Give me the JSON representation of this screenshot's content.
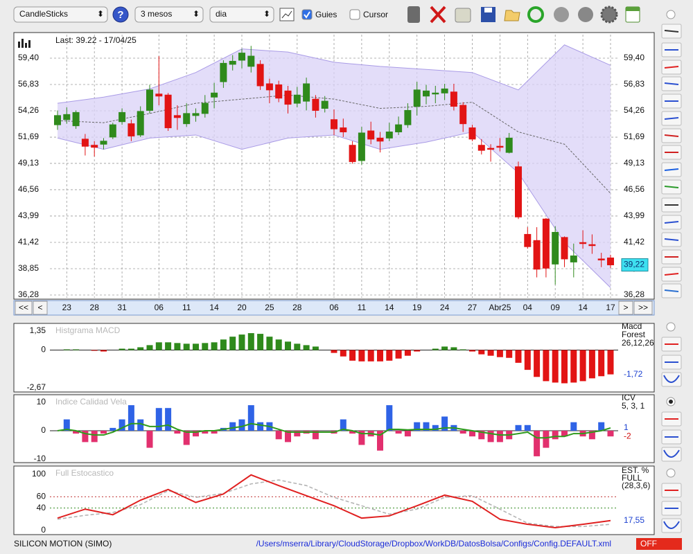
{
  "toolbar": {
    "chart_type": "CandleSticks",
    "period": "3 mesos",
    "interval": "dia",
    "options": [
      {
        "label": "Guies",
        "checked": true
      },
      {
        "label": "Cursor",
        "checked": false
      }
    ]
  },
  "main_chart": {
    "type": "candlestick",
    "last_label": "Last: 39.22 - 17/04/25",
    "categories": [
      null,
      "23",
      null,
      null,
      "28",
      null,
      null,
      "31",
      null,
      null,
      null,
      "06",
      null,
      null,
      "11",
      null,
      null,
      "14",
      null,
      null,
      "20",
      null,
      null,
      "25",
      null,
      null,
      "28",
      null,
      null,
      null,
      "06",
      null,
      null,
      "11",
      null,
      null,
      "14",
      null,
      null,
      "19",
      null,
      null,
      "24",
      null,
      null,
      "27",
      null,
      null,
      "Abr25",
      null,
      null,
      "04",
      null,
      null,
      "09",
      null,
      null,
      "14",
      null,
      null,
      "17"
    ],
    "open": [
      52.9,
      53.4,
      52.8,
      51.5,
      50.9,
      51.0,
      51.7,
      53.2,
      53.0,
      51.9,
      54.3,
      55.9,
      55.8,
      53.8,
      53.0,
      53.8,
      54.0,
      55.6,
      57.1,
      58.8,
      59.2,
      58.6,
      58.8,
      56.9,
      56.8,
      56.2,
      55.0,
      55.2,
      55.4,
      54.5,
      53.4,
      52.6,
      50.9,
      49.4,
      52.3,
      51.6,
      51.6,
      52.2,
      52.9,
      54.7,
      55.7,
      55.9,
      56.0,
      56.1,
      54.8,
      52.6,
      50.9,
      50.6,
      50.8,
      50.2,
      48.8,
      42.2,
      41.6,
      43.7,
      39.3,
      41.9,
      39.5,
      41.4,
      41.2,
      39.8,
      39.9
    ],
    "high": [
      54.3,
      54.6,
      54.3,
      52.0,
      51.3,
      51.6,
      53.1,
      54.5,
      53.4,
      54.7,
      56.8,
      59.6,
      56.0,
      54.8,
      55.0,
      54.5,
      55.8,
      57.0,
      59.2,
      59.7,
      60.3,
      60.6,
      59.2,
      57.4,
      57.2,
      56.7,
      56.6,
      57.5,
      55.8,
      55.7,
      54.4,
      53.5,
      51.3,
      52.7,
      53.2,
      52.2,
      53.1,
      53.7,
      55.0,
      57.1,
      56.8,
      56.7,
      56.9,
      56.9,
      55.1,
      52.9,
      51.5,
      51.0,
      51.6,
      52.1,
      49.3,
      42.9,
      42.9,
      43.8,
      43.0,
      42.0,
      41.3,
      42.6,
      42.2,
      40.4,
      40.2
    ],
    "low": [
      52.4,
      53.0,
      52.5,
      49.9,
      49.8,
      50.5,
      51.5,
      52.9,
      51.3,
      51.7,
      54.0,
      54.8,
      52.3,
      52.4,
      52.7,
      53.2,
      53.6,
      54.5,
      56.5,
      58.2,
      58.4,
      58.0,
      56.3,
      55.0,
      55.1,
      54.0,
      54.6,
      54.3,
      53.6,
      54.1,
      51.9,
      51.7,
      49.1,
      49.0,
      51.0,
      50.2,
      51.3,
      51.9,
      52.6,
      53.8,
      54.9,
      55.0,
      55.3,
      54.3,
      52.2,
      51.3,
      50.0,
      49.3,
      50.3,
      50.1,
      43.7,
      40.8,
      38.0,
      38.0,
      37.3,
      39.0,
      38.0,
      40.8,
      40.3,
      39.0,
      38.9
    ],
    "close": [
      53.8,
      53.9,
      54.1,
      50.8,
      50.7,
      51.3,
      52.9,
      54.1,
      51.8,
      54.2,
      56.3,
      55.7,
      52.6,
      53.6,
      54.0,
      54.0,
      55.0,
      56.0,
      58.9,
      59.1,
      59.9,
      59.6,
      56.7,
      56.3,
      55.5,
      54.9,
      55.8,
      56.9,
      54.3,
      55.2,
      52.5,
      52.2,
      49.3,
      52.1,
      51.5,
      51.3,
      52.2,
      52.9,
      54.3,
      56.3,
      56.2,
      56.0,
      56.4,
      54.7,
      53.0,
      51.5,
      50.4,
      50.5,
      50.7,
      51.6,
      43.9,
      41.0,
      38.8,
      38.9,
      42.4,
      39.8,
      40.1,
      41.3,
      41.1,
      39.7,
      39.22
    ],
    "up_color": "#2f8a1c",
    "down_color": "#e21414",
    "ylim": [
      36.28,
      59.4
    ],
    "yticks": [
      {
        "value": 59.4,
        "label": "59,40"
      },
      {
        "value": 56.83,
        "label": "56,83"
      },
      {
        "value": 54.26,
        "label": "54,26"
      },
      {
        "value": 51.69,
        "label": "51,69"
      },
      {
        "value": 49.13,
        "label": "49,13"
      },
      {
        "value": 46.56,
        "label": "46,56"
      },
      {
        "value": 43.99,
        "label": "43,99"
      },
      {
        "value": 41.42,
        "label": "41,42"
      },
      {
        "value": 38.85,
        "label": "38,85"
      },
      {
        "value": 36.28,
        "label": "36,28"
      }
    ],
    "grid": true,
    "bands": {
      "index": [
        0,
        5,
        10,
        15,
        20,
        25,
        30,
        35,
        40,
        45,
        50,
        55,
        60
      ],
      "upper": [
        55.0,
        55.6,
        56.4,
        58.0,
        60.3,
        60.0,
        59.0,
        58.6,
        58.3,
        58.0,
        56.3,
        60.7,
        58.7
      ],
      "middle": [
        53.3,
        53.1,
        54.0,
        55.0,
        55.4,
        55.8,
        55.4,
        54.5,
        54.7,
        55.1,
        52.2,
        51.0,
        46.2
      ],
      "lower": [
        51.6,
        50.5,
        51.6,
        51.9,
        50.5,
        51.6,
        51.9,
        50.5,
        51.2,
        52.2,
        48.2,
        41.4,
        37.0
      ],
      "fill_color": "#d9d2f7",
      "line_color": "#a99be6"
    },
    "price_tag": {
      "value": 39.22,
      "label": "39,22"
    }
  },
  "nav": {
    "back_far": "<<",
    "back": "<",
    "forward": ">",
    "forward_far": ">>"
  },
  "macd": {
    "type": "bar",
    "title": "Histgrama MACD",
    "values": [
      0,
      0.05,
      0.05,
      0,
      -0.05,
      -0.1,
      0,
      0.1,
      0.1,
      0.2,
      0.35,
      0.55,
      0.55,
      0.5,
      0.45,
      0.45,
      0.5,
      0.55,
      0.75,
      0.95,
      1.1,
      1.2,
      1.15,
      0.95,
      0.75,
      0.6,
      0.45,
      0.35,
      0.25,
      0,
      -0.2,
      -0.45,
      -0.75,
      -0.8,
      -0.8,
      -0.8,
      -0.75,
      -0.6,
      -0.4,
      -0.1,
      0,
      0.1,
      0.25,
      0.2,
      0.05,
      -0.1,
      -0.3,
      -0.4,
      -0.5,
      -0.55,
      -0.9,
      -1.4,
      -1.9,
      -2.2,
      -2.3,
      -2.35,
      -2.3,
      -2.2,
      -2.0,
      -1.85,
      -1.72
    ],
    "pos_color": "#2f8a1c",
    "neg_color": "#e21414",
    "ylim": [
      -2.67,
      1.35
    ],
    "yticks": [
      {
        "value": 1.35,
        "label": "1,35"
      },
      0,
      {
        "value": -2.67,
        "label": "-2,67"
      }
    ],
    "legend": [
      "Macd",
      "Forest",
      "26,12,26"
    ],
    "readout": {
      "value": -1.72,
      "label": "-1,72"
    }
  },
  "icv": {
    "type": "bar",
    "title": "Indice Calidad Vela",
    "values": [
      0,
      4,
      -1,
      -4,
      -4,
      -1,
      1,
      4,
      9,
      4,
      -6,
      8,
      8,
      -1,
      -5,
      -2,
      -1,
      -1,
      1,
      3,
      4,
      9,
      3,
      3,
      -3,
      -4,
      -2,
      -1,
      -3,
      0,
      -1,
      4,
      -1,
      -5,
      -2,
      -7,
      9,
      -1,
      -2,
      3,
      3,
      2,
      5,
      2,
      -1,
      -2,
      -3,
      -4,
      -4,
      -3,
      2,
      2,
      -9,
      -6,
      -3,
      -2,
      3,
      -2,
      -3,
      3,
      -2
    ],
    "signal": [
      0,
      0.5,
      0,
      -1,
      -1.5,
      -1.5,
      -0.5,
      1,
      2.5,
      2.5,
      1.5,
      1.5,
      2,
      0.5,
      -0.5,
      -0.5,
      0,
      0,
      0.5,
      1,
      1.5,
      2.5,
      2,
      1.5,
      0.5,
      -0.5,
      -0.5,
      -0.5,
      -0.5,
      -0.5,
      -0.5,
      0.5,
      0,
      -1,
      -1,
      -1.5,
      0.5,
      0.5,
      0.3,
      0.5,
      0.5,
      0.5,
      1,
      1,
      0.5,
      0,
      -0.5,
      -1,
      -1.5,
      -1.5,
      -1,
      -0.5,
      -2.5,
      -2.5,
      -2,
      -2,
      -1,
      -1,
      -0.5,
      0,
      1
    ],
    "pos_color": "#2f63e6",
    "neg_color": "#e2306e",
    "signal_color": "#2f9a1c",
    "ylim": [
      -10,
      10
    ],
    "yticks": [
      10,
      0,
      -10
    ],
    "legend": [
      "ICV",
      "5, 3, 1"
    ],
    "readouts": [
      1,
      -2
    ],
    "readout_colors": [
      "#1a3fd0",
      "#d01010"
    ]
  },
  "stochastic": {
    "type": "line",
    "title": "Full Estocastico",
    "x": [
      0,
      3,
      6,
      9,
      12,
      15,
      18,
      21,
      24,
      27,
      30,
      33,
      36,
      39,
      42,
      45,
      48,
      51,
      54,
      57,
      60
    ],
    "series": [
      {
        "color": "#e02020",
        "values": [
          22,
          38,
          28,
          54,
          73,
          50,
          65,
          99,
          80,
          62,
          44,
          22,
          26,
          44,
          63,
          52,
          20,
          11,
          5,
          11,
          17.55
        ]
      },
      {
        "color": "#b4b4b4",
        "values": [
          20,
          27,
          32,
          46,
          71,
          59,
          66,
          83,
          90,
          80,
          59,
          44,
          29,
          38,
          59,
          62,
          38,
          13,
          7,
          7,
          11
        ]
      }
    ],
    "ylim": [
      0,
      100
    ],
    "yticks": [
      100,
      60,
      40,
      0
    ],
    "guide_colors": [
      "#c03030",
      "#2f8a1c"
    ],
    "legend": [
      "EST. %",
      "FULL",
      "(28,3,6)"
    ],
    "readout": {
      "value": 17.55,
      "label": "17,55"
    }
  },
  "status": {
    "symbol": "SILICON MOTION (SIMO)",
    "path": "/Users/mserra/Library/CloudStorage/Dropbox/WorkDB/DatosBolsa/Configs/Config.DEFAULT.xml",
    "mode": "OFF"
  }
}
